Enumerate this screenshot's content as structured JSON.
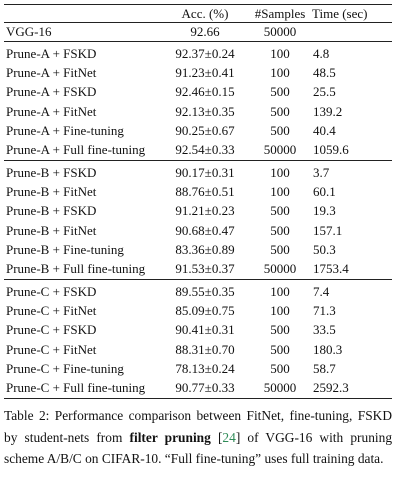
{
  "table": {
    "header": [
      "Acc. (%)",
      "#Samples",
      "Time (sec)"
    ],
    "groups": [
      [
        [
          "VGG-16",
          "92.66",
          "50000"
        ]
      ],
      [
        [
          "Prune-A + FSKD",
          "92.37±0.24",
          "100",
          "4.8"
        ],
        [
          "Prune-A + FitNet",
          "91.23±0.41",
          "100",
          "48.5"
        ],
        [
          "Prune-A + FSKD",
          "92.46±0.15",
          "500",
          "25.5"
        ],
        [
          "Prune-A + FitNet",
          "92.13±0.35",
          "500",
          "139.2"
        ],
        [
          "Prune-A + Fine-tuning",
          "90.25±0.67",
          "500",
          "40.4"
        ],
        [
          "Prune-A + Full fine-tuning",
          "92.54±0.33",
          "50000",
          "1059.6"
        ]
      ],
      [
        [
          "Prune-B + FSKD",
          "90.17±0.31",
          "100",
          "3.7"
        ],
        [
          "Prune-B + FitNet",
          "88.76±0.51",
          "100",
          "60.1"
        ],
        [
          "Prune-B + FSKD",
          "91.21±0.23",
          "500",
          "19.3"
        ],
        [
          "Prune-B + FitNet",
          "90.68±0.47",
          "500",
          "157.1"
        ],
        [
          "Prune-B + Fine-tuning",
          "83.36±0.89",
          "500",
          "50.3"
        ],
        [
          "Prune-B + Full fine-tuning",
          "91.53±0.37",
          "50000",
          "1753.4"
        ]
      ],
      [
        [
          "Prune-C + FSKD",
          "89.55±0.35",
          "100",
          "7.4"
        ],
        [
          "Prune-C + FitNet",
          "85.09±0.75",
          "100",
          "71.3"
        ],
        [
          "Prune-C + FSKD",
          "90.41±0.31",
          "500",
          "33.5"
        ],
        [
          "Prune-C + FitNet",
          "88.31±0.70",
          "500",
          "180.3"
        ],
        [
          "Prune-C + Fine-tuning",
          "78.13±0.24",
          "500",
          "58.7"
        ],
        [
          "Prune-C + Full fine-tuning",
          "90.77±0.33",
          "50000",
          "2592.3"
        ]
      ]
    ]
  },
  "caption": {
    "lead": "Table 2: Performance comparison between FitNet, fine-tuning, FSKD by student-nets from",
    "bold": "filter pruning",
    "open": "[",
    "ref": "24",
    "rest": "] of VGG-16 with pruning scheme A/B/C on CIFAR-10. “Full fine-tuning” uses full training data."
  }
}
